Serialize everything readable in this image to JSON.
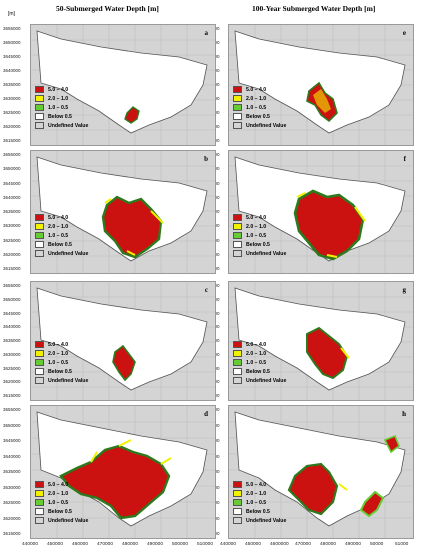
{
  "headers": {
    "left": "50-Submerged Water Depth [m]",
    "right": "100-Year Submerged Water Depth [m]"
  },
  "unit_label": "[m]",
  "legend": [
    {
      "label": "5.0 – 4.0",
      "color": "#cc1111"
    },
    {
      "label": "2.0 – 1.0",
      "color": "#f2f200"
    },
    {
      "label": "1.0 – 0.5",
      "color": "#66cc33"
    },
    {
      "label": "Below 0.5",
      "color": "#ffffff"
    },
    {
      "label": "Undefined Value",
      "color": "#d4d4d4"
    }
  ],
  "panels": [
    {
      "id": "a",
      "label": "a"
    },
    {
      "id": "e",
      "label": "e"
    },
    {
      "id": "b",
      "label": "b"
    },
    {
      "id": "f",
      "label": "f"
    },
    {
      "id": "c",
      "label": "c"
    },
    {
      "id": "g",
      "label": "g"
    },
    {
      "id": "d",
      "label": "d"
    },
    {
      "id": "h",
      "label": "h"
    }
  ],
  "y_ticks": [
    "3655000",
    "3650000",
    "3645000",
    "3640000",
    "3635000",
    "3630000",
    "3625000",
    "3620000",
    "3615000"
  ],
  "x_ticks": [
    "440000",
    "450000",
    "460000",
    "470000",
    "480000",
    "490000",
    "500000",
    "510000"
  ],
  "x_ticks_right": [
    "440000",
    "450000",
    "4600000",
    "470000",
    "480000",
    "490000",
    "50000",
    "51000"
  ]
}
